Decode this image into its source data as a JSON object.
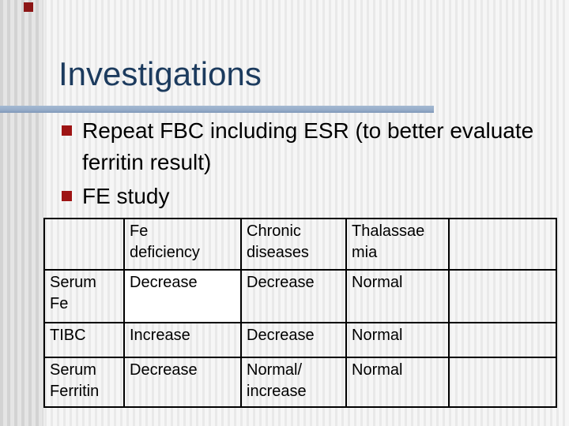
{
  "slide": {
    "title": "Investigations",
    "bullets": [
      "Repeat FBC including ESR (to better evaluate ferritin result)",
      "FE study"
    ],
    "table": {
      "col_headers": [
        "",
        "Fe\ndeficiency",
        "Chronic\ndiseases",
        "Thalassae\nmia",
        ""
      ],
      "rows": [
        {
          "label": "Serum\nFe",
          "cells": [
            "Decrease",
            "Decrease",
            "Normal",
            ""
          ]
        },
        {
          "label": "TIBC",
          "cells": [
            "Increase",
            "Decrease",
            "Normal",
            ""
          ]
        },
        {
          "label": "Serum\nFerritin",
          "cells": [
            "Decrease",
            "Normal/\nincrease",
            "Normal",
            ""
          ]
        }
      ]
    },
    "colors": {
      "title_text": "#1c3b5e",
      "title_rule": "#97adc9",
      "bullet_square": "#9e1414",
      "body_text": "#000000",
      "table_border": "#000000",
      "table_red_text": "#8b2222",
      "highlight_cell_bg": "#ffffff",
      "corner_square": "#8c1616"
    }
  }
}
